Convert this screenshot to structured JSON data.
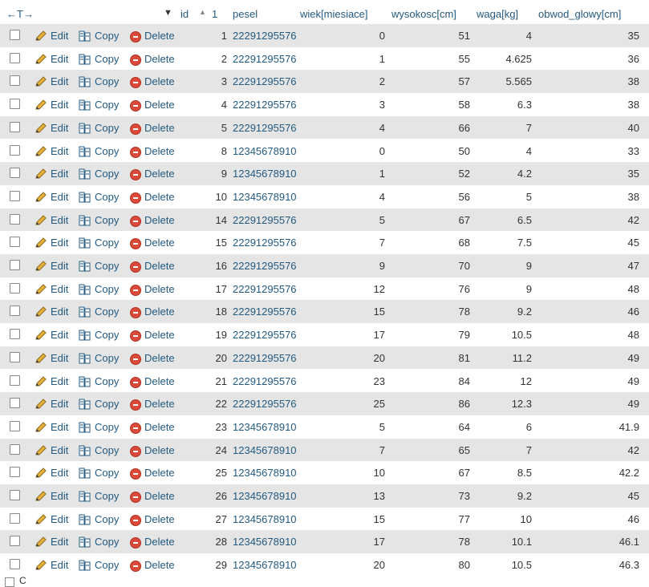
{
  "header": {
    "arrows": "←T→",
    "columns": [
      {
        "key": "id",
        "label": "id",
        "sort_order": "1"
      },
      {
        "key": "pesel",
        "label": "pesel"
      },
      {
        "key": "wiek",
        "label": "wiek[miesiace]"
      },
      {
        "key": "wysokosc",
        "label": "wysokosc[cm]"
      },
      {
        "key": "waga",
        "label": "waga[kg]"
      },
      {
        "key": "obwod",
        "label": "obwod_glowy[cm]"
      }
    ]
  },
  "actions": {
    "edit": "Edit",
    "copy": "Copy",
    "delete": "Delete"
  },
  "rows": [
    {
      "id": "1",
      "pesel": "22291295576",
      "wiek": "0",
      "wysokosc": "51",
      "waga": "4",
      "obwod": "35"
    },
    {
      "id": "2",
      "pesel": "22291295576",
      "wiek": "1",
      "wysokosc": "55",
      "waga": "4.625",
      "obwod": "36"
    },
    {
      "id": "3",
      "pesel": "22291295576",
      "wiek": "2",
      "wysokosc": "57",
      "waga": "5.565",
      "obwod": "38"
    },
    {
      "id": "4",
      "pesel": "22291295576",
      "wiek": "3",
      "wysokosc": "58",
      "waga": "6.3",
      "obwod": "38"
    },
    {
      "id": "5",
      "pesel": "22291295576",
      "wiek": "4",
      "wysokosc": "66",
      "waga": "7",
      "obwod": "40"
    },
    {
      "id": "8",
      "pesel": "12345678910",
      "wiek": "0",
      "wysokosc": "50",
      "waga": "4",
      "obwod": "33"
    },
    {
      "id": "9",
      "pesel": "12345678910",
      "wiek": "1",
      "wysokosc": "52",
      "waga": "4.2",
      "obwod": "35"
    },
    {
      "id": "10",
      "pesel": "12345678910",
      "wiek": "4",
      "wysokosc": "56",
      "waga": "5",
      "obwod": "38"
    },
    {
      "id": "14",
      "pesel": "22291295576",
      "wiek": "5",
      "wysokosc": "67",
      "waga": "6.5",
      "obwod": "42"
    },
    {
      "id": "15",
      "pesel": "22291295576",
      "wiek": "7",
      "wysokosc": "68",
      "waga": "7.5",
      "obwod": "45"
    },
    {
      "id": "16",
      "pesel": "22291295576",
      "wiek": "9",
      "wysokosc": "70",
      "waga": "9",
      "obwod": "47"
    },
    {
      "id": "17",
      "pesel": "22291295576",
      "wiek": "12",
      "wysokosc": "76",
      "waga": "9",
      "obwod": "48"
    },
    {
      "id": "18",
      "pesel": "22291295576",
      "wiek": "15",
      "wysokosc": "78",
      "waga": "9.2",
      "obwod": "46"
    },
    {
      "id": "19",
      "pesel": "22291295576",
      "wiek": "17",
      "wysokosc": "79",
      "waga": "10.5",
      "obwod": "48"
    },
    {
      "id": "20",
      "pesel": "22291295576",
      "wiek": "20",
      "wysokosc": "81",
      "waga": "11.2",
      "obwod": "49"
    },
    {
      "id": "21",
      "pesel": "22291295576",
      "wiek": "23",
      "wysokosc": "84",
      "waga": "12",
      "obwod": "49"
    },
    {
      "id": "22",
      "pesel": "22291295576",
      "wiek": "25",
      "wysokosc": "86",
      "waga": "12.3",
      "obwod": "49"
    },
    {
      "id": "23",
      "pesel": "12345678910",
      "wiek": "5",
      "wysokosc": "64",
      "waga": "6",
      "obwod": "41.9"
    },
    {
      "id": "24",
      "pesel": "12345678910",
      "wiek": "7",
      "wysokosc": "65",
      "waga": "7",
      "obwod": "42"
    },
    {
      "id": "25",
      "pesel": "12345678910",
      "wiek": "10",
      "wysokosc": "67",
      "waga": "8.5",
      "obwod": "42.2"
    },
    {
      "id": "26",
      "pesel": "12345678910",
      "wiek": "13",
      "wysokosc": "73",
      "waga": "9.2",
      "obwod": "45"
    },
    {
      "id": "27",
      "pesel": "12345678910",
      "wiek": "15",
      "wysokosc": "77",
      "waga": "10",
      "obwod": "46"
    },
    {
      "id": "28",
      "pesel": "12345678910",
      "wiek": "17",
      "wysokosc": "78",
      "waga": "10.1",
      "obwod": "46.1"
    },
    {
      "id": "29",
      "pesel": "12345678910",
      "wiek": "20",
      "wysokosc": "80",
      "waga": "10.5",
      "obwod": "46.3"
    }
  ],
  "footer": {
    "partial_text": "C"
  }
}
